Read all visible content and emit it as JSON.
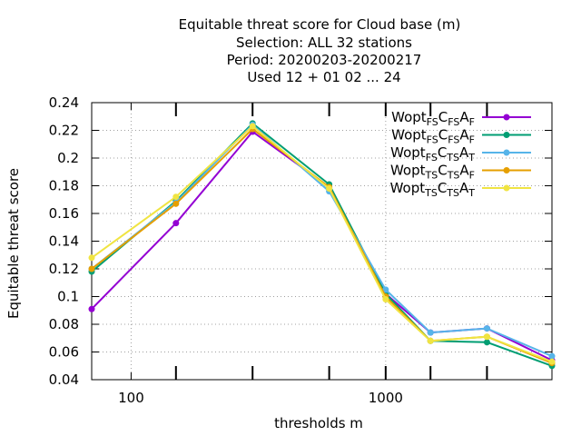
{
  "chart_data": {
    "type": "line",
    "title_lines": [
      "Equitable threat score  for Cloud base (m)",
      "Selection: ALL     32 stations",
      "Period: 20200203-20200217",
      "Used  12 + 01 02 ... 24"
    ],
    "xlabel": "thresholds m",
    "ylabel": "Equitable threat score",
    "xscale": "log",
    "xlim": [
      70,
      4500
    ],
    "ylim": [
      0.04,
      0.24
    ],
    "x_ticks": [
      100,
      1000
    ],
    "x_tick_labels": [
      "100",
      "1000"
    ],
    "y_ticks": [
      0.04,
      0.06,
      0.08,
      0.1,
      0.12,
      0.14,
      0.16,
      0.18,
      0.2,
      0.22,
      0.24
    ],
    "y_tick_labels": [
      "0.04",
      "0.06",
      "0.08",
      "0.1",
      "0.12",
      "0.14",
      "0.16",
      "0.18",
      "0.2",
      "0.22",
      "0.24"
    ],
    "grid": true,
    "legend_position": "top-right",
    "x": [
      70,
      150,
      300,
      600,
      1000,
      1500,
      2500,
      4500
    ],
    "series": [
      {
        "name": "Wopt FS CFS AF",
        "base": "Wopt",
        "sub1": "FS",
        "c": "C",
        "sub2": "FS",
        "a": "A",
        "sub3": "F",
        "color": "#9400d3",
        "values": [
          0.091,
          0.153,
          0.219,
          0.179,
          0.102,
          0.074,
          0.077,
          0.054
        ]
      },
      {
        "name": "Wopt FS CFS AF",
        "base": "Wopt",
        "sub1": "FS",
        "c": "C",
        "sub2": "FS",
        "a": "A",
        "sub3": "F",
        "color": "#009e73",
        "values": [
          0.118,
          0.169,
          0.225,
          0.181,
          0.102,
          0.068,
          0.067,
          0.05
        ]
      },
      {
        "name": "Wopt FS CTS AT",
        "base": "Wopt",
        "sub1": "FS",
        "c": "C",
        "sub2": "TS",
        "a": "A",
        "sub3": "T",
        "color": "#56b4e9",
        "values": [
          0.12,
          0.168,
          0.224,
          0.176,
          0.105,
          0.074,
          0.077,
          0.057
        ]
      },
      {
        "name": "Wopt TS CTS AF",
        "base": "Wopt",
        "sub1": "TS",
        "c": "C",
        "sub2": "TS",
        "a": "A",
        "sub3": "F",
        "color": "#e69f00",
        "values": [
          0.12,
          0.167,
          0.221,
          0.179,
          0.1,
          0.068,
          0.071,
          0.052
        ]
      },
      {
        "name": "Wopt TS CTS AT",
        "base": "Wopt",
        "sub1": "TS",
        "c": "C",
        "sub2": "TS",
        "a": "A",
        "sub3": "T",
        "color": "#f0e442",
        "values": [
          0.128,
          0.172,
          0.223,
          0.178,
          0.098,
          0.068,
          0.071,
          0.053
        ]
      }
    ]
  }
}
